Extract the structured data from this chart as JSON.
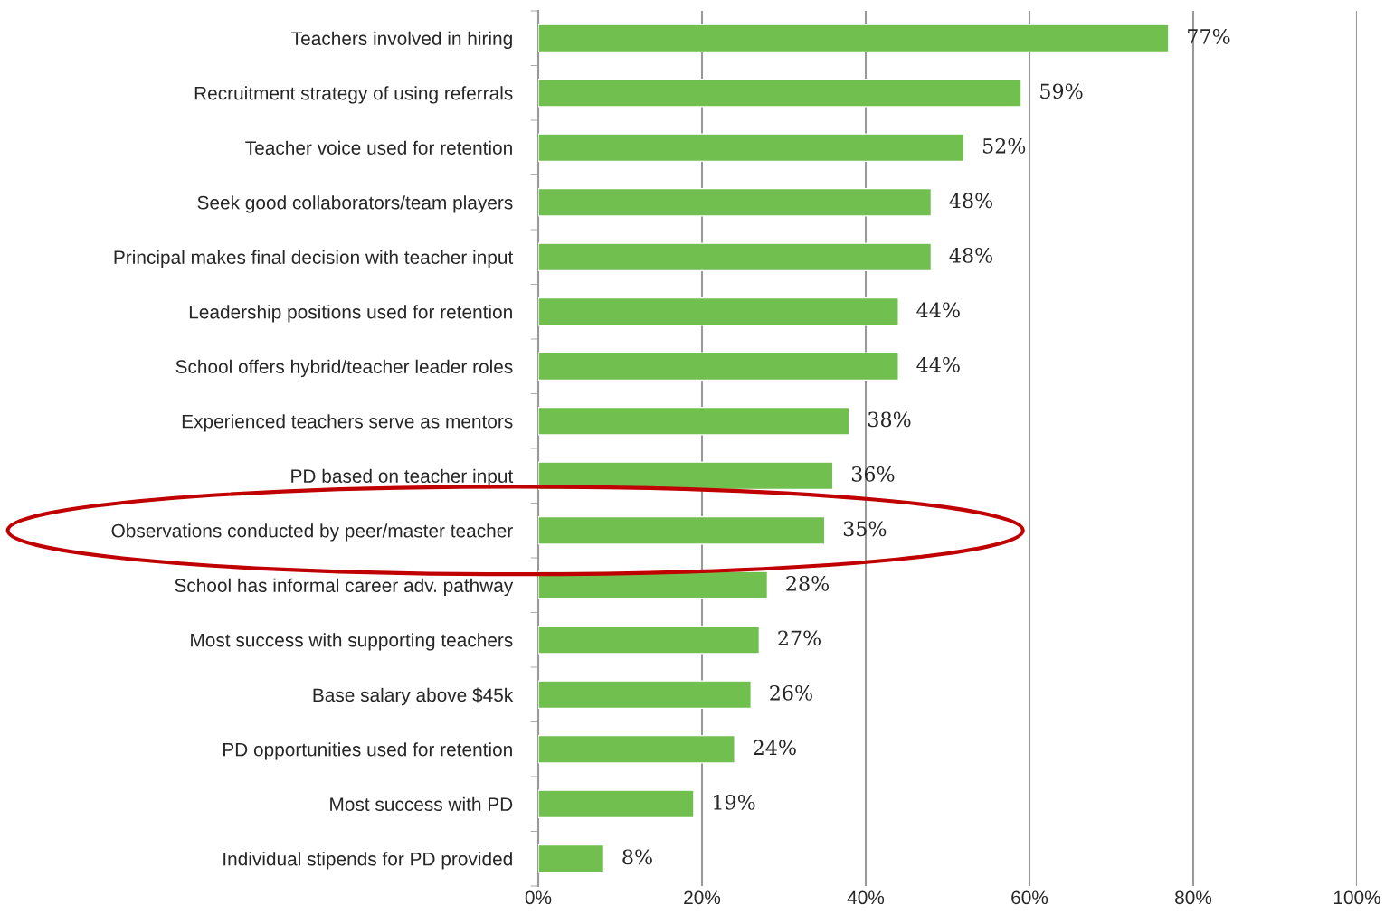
{
  "chart_data": {
    "type": "bar",
    "orientation": "horizontal",
    "categories": [
      "Teachers involved in hiring",
      "Recruitment strategy of using referrals",
      "Teacher voice used for retention",
      "Seek good collaborators/team players",
      "Principal makes final decision with teacher input",
      "Leadership positions used for retention",
      "School offers hybrid/teacher leader roles",
      "Experienced teachers serve as mentors",
      "PD based on teacher input",
      "Observations conducted by peer/master teacher",
      "School has informal career adv. pathway",
      "Most success with supporting teachers",
      "Base salary above $45k",
      "PD opportunities used for retention",
      "Most success with PD",
      "Individual stipends for PD provided"
    ],
    "values": [
      77,
      59,
      52,
      48,
      48,
      44,
      44,
      38,
      36,
      35,
      28,
      27,
      26,
      24,
      19,
      8
    ],
    "value_labels": [
      "77%",
      "59%",
      "52%",
      "48%",
      "48%",
      "44%",
      "44%",
      "38%",
      "36%",
      "35%",
      "28%",
      "27%",
      "26%",
      "24%",
      "19%",
      "8%"
    ],
    "color": "#70bf4f",
    "xlim": [
      0,
      100
    ],
    "xticks": [
      {
        "value": 0,
        "label": "0%"
      },
      {
        "value": 20,
        "label": "20%"
      },
      {
        "value": 40,
        "label": "40%"
      },
      {
        "value": 60,
        "label": "60%"
      },
      {
        "value": 80,
        "label": "80%"
      },
      {
        "value": 100,
        "label": "100%"
      }
    ],
    "grid": "x",
    "legend": false
  }
}
